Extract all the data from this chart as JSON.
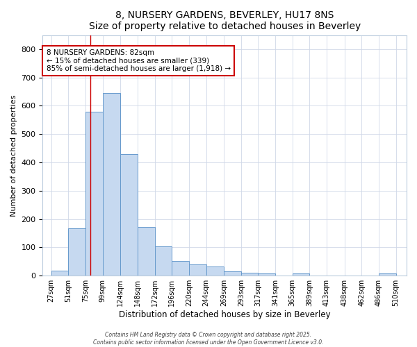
{
  "title": "8, NURSERY GARDENS, BEVERLEY, HU17 8NS",
  "subtitle": "Size of property relative to detached houses in Beverley",
  "xlabel": "Distribution of detached houses by size in Beverley",
  "ylabel": "Number of detached properties",
  "bar_left_edges": [
    27,
    51,
    75,
    99,
    124,
    148,
    172,
    196,
    220,
    244,
    269,
    293,
    317,
    341,
    365,
    389,
    413,
    438,
    462,
    486
  ],
  "bar_heights": [
    17,
    168,
    580,
    645,
    430,
    173,
    103,
    52,
    40,
    32,
    14,
    11,
    9,
    0,
    8,
    0,
    0,
    0,
    0,
    7
  ],
  "bar_widths": [
    24,
    24,
    24,
    25,
    24,
    24,
    24,
    24,
    24,
    25,
    24,
    24,
    24,
    24,
    24,
    24,
    25,
    24,
    24,
    24
  ],
  "bar_color": "#c6d9f0",
  "bar_edge_color": "#6699cc",
  "property_line_x": 82,
  "property_line_color": "#cc0000",
  "annotation_text_line1": "8 NURSERY GARDENS: 82sqm",
  "annotation_text_line2": "← 15% of detached houses are smaller (339)",
  "annotation_text_line3": "85% of semi-detached houses are larger (1,918) →",
  "annotation_box_color": "#ffffff",
  "annotation_box_edge": "#cc0000",
  "ylim": [
    0,
    850
  ],
  "xlim": [
    15,
    525
  ],
  "yticks": [
    0,
    100,
    200,
    300,
    400,
    500,
    600,
    700,
    800
  ],
  "xtick_labels": [
    "27sqm",
    "51sqm",
    "75sqm",
    "99sqm",
    "124sqm",
    "148sqm",
    "172sqm",
    "196sqm",
    "220sqm",
    "244sqm",
    "269sqm",
    "293sqm",
    "317sqm",
    "341sqm",
    "365sqm",
    "389sqm",
    "413sqm",
    "438sqm",
    "462sqm",
    "486sqm",
    "510sqm"
  ],
  "xtick_positions": [
    27,
    51,
    75,
    99,
    124,
    148,
    172,
    196,
    220,
    244,
    269,
    293,
    317,
    341,
    365,
    389,
    413,
    438,
    462,
    486,
    510
  ],
  "grid_color": "#d0d8e8",
  "bg_color": "#ffffff",
  "plot_bg_color": "#ffffff",
  "footer_text": "Contains HM Land Registry data © Crown copyright and database right 2025.\nContains public sector information licensed under the Open Government Licence v3.0."
}
